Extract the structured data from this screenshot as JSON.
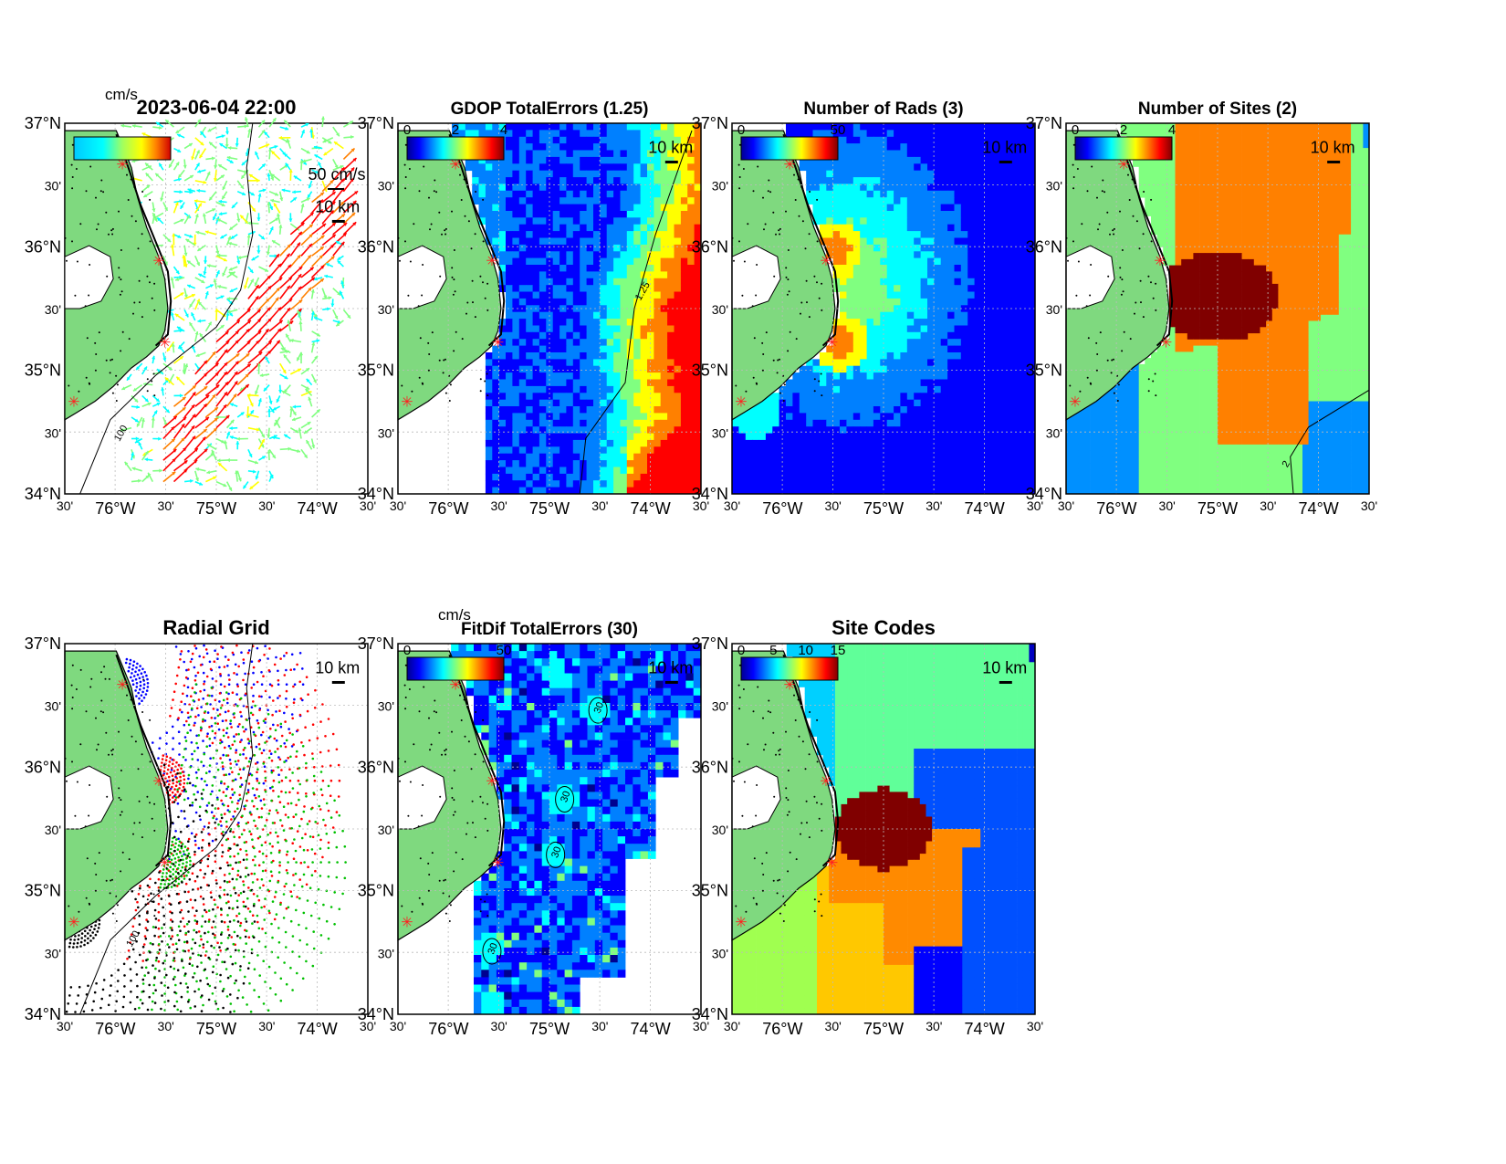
{
  "colors": {
    "land": "#7fd97f",
    "frame": "#000000",
    "grid": "#bbbbbb",
    "jet": [
      "#00008f",
      "#0000ff",
      "#0080ff",
      "#00ffff",
      "#80ff80",
      "#ffff00",
      "#ff8000",
      "#ff0000",
      "#800000"
    ],
    "site_marker": "#ff2020",
    "radial_colors": [
      "#0000ff",
      "#ff0000",
      "#00c000",
      "#000000"
    ]
  },
  "axis_ticks": {
    "lat_major": [
      "37°N",
      "36°N",
      "35°N",
      "34°N"
    ],
    "lat_minor": "30'",
    "lon_major": [
      "76°W",
      "75°W",
      "74°W"
    ],
    "lon_minor": "30'"
  },
  "panels": {
    "p1": {
      "title": "2023-06-04 22:00",
      "unit": "cm/s",
      "colorbar_ticks": [],
      "ref_vector_label": "50 cm/s",
      "scale_label": "10 km",
      "contour_label": "100"
    },
    "p2": {
      "title": "GDOP TotalErrors (1.25)",
      "colorbar_ticks": [
        "0",
        "2",
        "4"
      ],
      "scale_label": "10 km",
      "contour_label": "1.25"
    },
    "p3": {
      "title": "Number of Rads (3)",
      "colorbar_ticks": [
        "0",
        "50"
      ],
      "scale_label": "10 km"
    },
    "p4": {
      "title": "Number of Sites (2)",
      "colorbar_ticks": [
        "0",
        "2",
        "4"
      ],
      "scale_label": "10 km",
      "contour_label": "2"
    },
    "p5": {
      "title": "Radial Grid",
      "scale_label": "10 km",
      "contour_label": "100"
    },
    "p6": {
      "title": "FitDif TotalErrors (30)",
      "unit": "cm/s",
      "colorbar_ticks": [
        "0",
        "50"
      ],
      "scale_label": "10 km",
      "contour_label": "30"
    },
    "p7": {
      "title": "Site Codes",
      "colorbar_ticks": [
        "0",
        "5",
        "10",
        "15"
      ],
      "scale_label": "10 km"
    }
  }
}
